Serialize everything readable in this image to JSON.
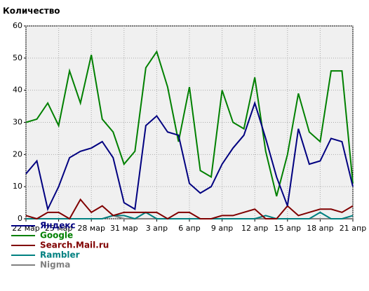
{
  "chart_data": {
    "type": "line",
    "title": "Количество",
    "categories": [
      "22 мар",
      null,
      null,
      "25 мар",
      null,
      null,
      "28 мар",
      null,
      null,
      "31 мар",
      null,
      null,
      "3 апр",
      null,
      null,
      "6 апр",
      null,
      null,
      "9 апр",
      null,
      null,
      "12 апр",
      null,
      null,
      "15 апр",
      null,
      null,
      "18 апр",
      null,
      null,
      "21 апр"
    ],
    "series": [
      {
        "name": "Яндекс",
        "color": "#000080",
        "values": [
          14,
          18,
          3,
          10,
          19,
          21,
          22,
          24,
          19,
          5,
          3,
          29,
          32,
          27,
          26,
          11,
          8,
          10,
          17,
          22,
          26,
          36,
          25,
          13,
          4,
          28,
          17,
          18,
          25,
          24,
          10
        ]
      },
      {
        "name": "Google",
        "color": "#008000",
        "values": [
          30,
          31,
          36,
          29,
          46,
          36,
          51,
          31,
          27,
          17,
          21,
          47,
          52,
          41,
          24,
          41,
          15,
          13,
          40,
          30,
          28,
          44,
          21,
          7,
          20,
          39,
          27,
          24,
          46,
          46,
          11
        ]
      },
      {
        "name": "Search.Mail.ru",
        "color": "#800000",
        "values": [
          1,
          0,
          2,
          2,
          0,
          6,
          2,
          4,
          1,
          2,
          2,
          2,
          2,
          0,
          2,
          2,
          0,
          0,
          1,
          1,
          2,
          3,
          0,
          0,
          4,
          1,
          2,
          3,
          3,
          2,
          4
        ]
      },
      {
        "name": "Rambler",
        "color": "#008080",
        "values": [
          0,
          0,
          0,
          0,
          0,
          0,
          0,
          0,
          1,
          1,
          0,
          2,
          0,
          0,
          0,
          0,
          0,
          0,
          0,
          0,
          0,
          0,
          1,
          0,
          0,
          0,
          0,
          2,
          0,
          0,
          1
        ]
      },
      {
        "name": "Nigma",
        "color": "#808080",
        "values": [
          0,
          0,
          0,
          0,
          0,
          0,
          0,
          0,
          1,
          0,
          0,
          0,
          0,
          0,
          0,
          0,
          0,
          0,
          0,
          0,
          0,
          0,
          0,
          0,
          0,
          0,
          0,
          0,
          0,
          0,
          0
        ]
      }
    ],
    "ylim": [
      0,
      60
    ],
    "yticks": [
      0,
      10,
      20,
      30,
      40,
      50,
      60
    ],
    "grid": true
  }
}
